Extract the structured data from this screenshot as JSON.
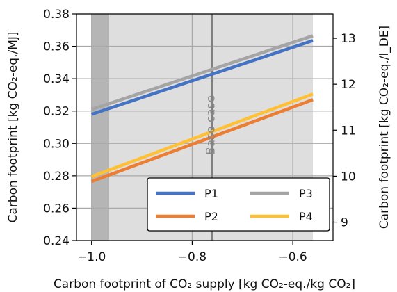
{
  "chart_data": {
    "type": "line",
    "xlabel": "Carbon footprint of CO₂ supply [kg CO₂-eq./kg CO₂]",
    "ylabel": "Carbon footprint [kg CO₂-eq./MJ]",
    "y2label": "Carbon footprint [kg CO₂-eq./l_DE]",
    "xlim": [
      -1.03,
      -0.52
    ],
    "ylim": [
      0.24,
      0.38
    ],
    "y2lim": [
      8.6,
      13.53
    ],
    "xticks": [
      -1.0,
      -0.8,
      -0.6
    ],
    "xtick_labels": [
      "−1.0",
      "−0.8",
      "−0.6"
    ],
    "yticks": [
      0.24,
      0.26,
      0.28,
      0.3,
      0.32,
      0.34,
      0.36,
      0.38
    ],
    "ytick_labels": [
      "0.24",
      "0.26",
      "0.28",
      "0.30",
      "0.32",
      "0.34",
      "0.36",
      "0.38"
    ],
    "y2ticks": [
      9,
      10,
      11,
      12,
      13
    ],
    "y2tick_labels": [
      "9",
      "10",
      "11",
      "12",
      "13"
    ],
    "grid": true,
    "shaded_regions": [
      {
        "x0": -1.0,
        "x1": -0.965,
        "color": "#b5b5b5"
      },
      {
        "x0": -0.965,
        "x1": -0.56,
        "color": "#dedede"
      }
    ],
    "vline": {
      "x": -0.76,
      "label": "Base case",
      "color": "#808080"
    },
    "legend_position": "lower-right",
    "series": [
      {
        "name": "P1",
        "color": "#4472c4",
        "x": [
          -1.0,
          -0.56
        ],
        "y": [
          0.318,
          0.3635
        ]
      },
      {
        "name": "P2",
        "color": "#ed7d31",
        "x": [
          -1.0,
          -0.56
        ],
        "y": [
          0.2765,
          0.327
        ]
      },
      {
        "name": "P3",
        "color": "#a5a5a5",
        "x": [
          -1.0,
          -0.56
        ],
        "y": [
          0.321,
          0.3665
        ]
      },
      {
        "name": "P4",
        "color": "#ffc133",
        "x": [
          -1.0,
          -0.56
        ],
        "y": [
          0.2795,
          0.3305
        ]
      }
    ]
  }
}
